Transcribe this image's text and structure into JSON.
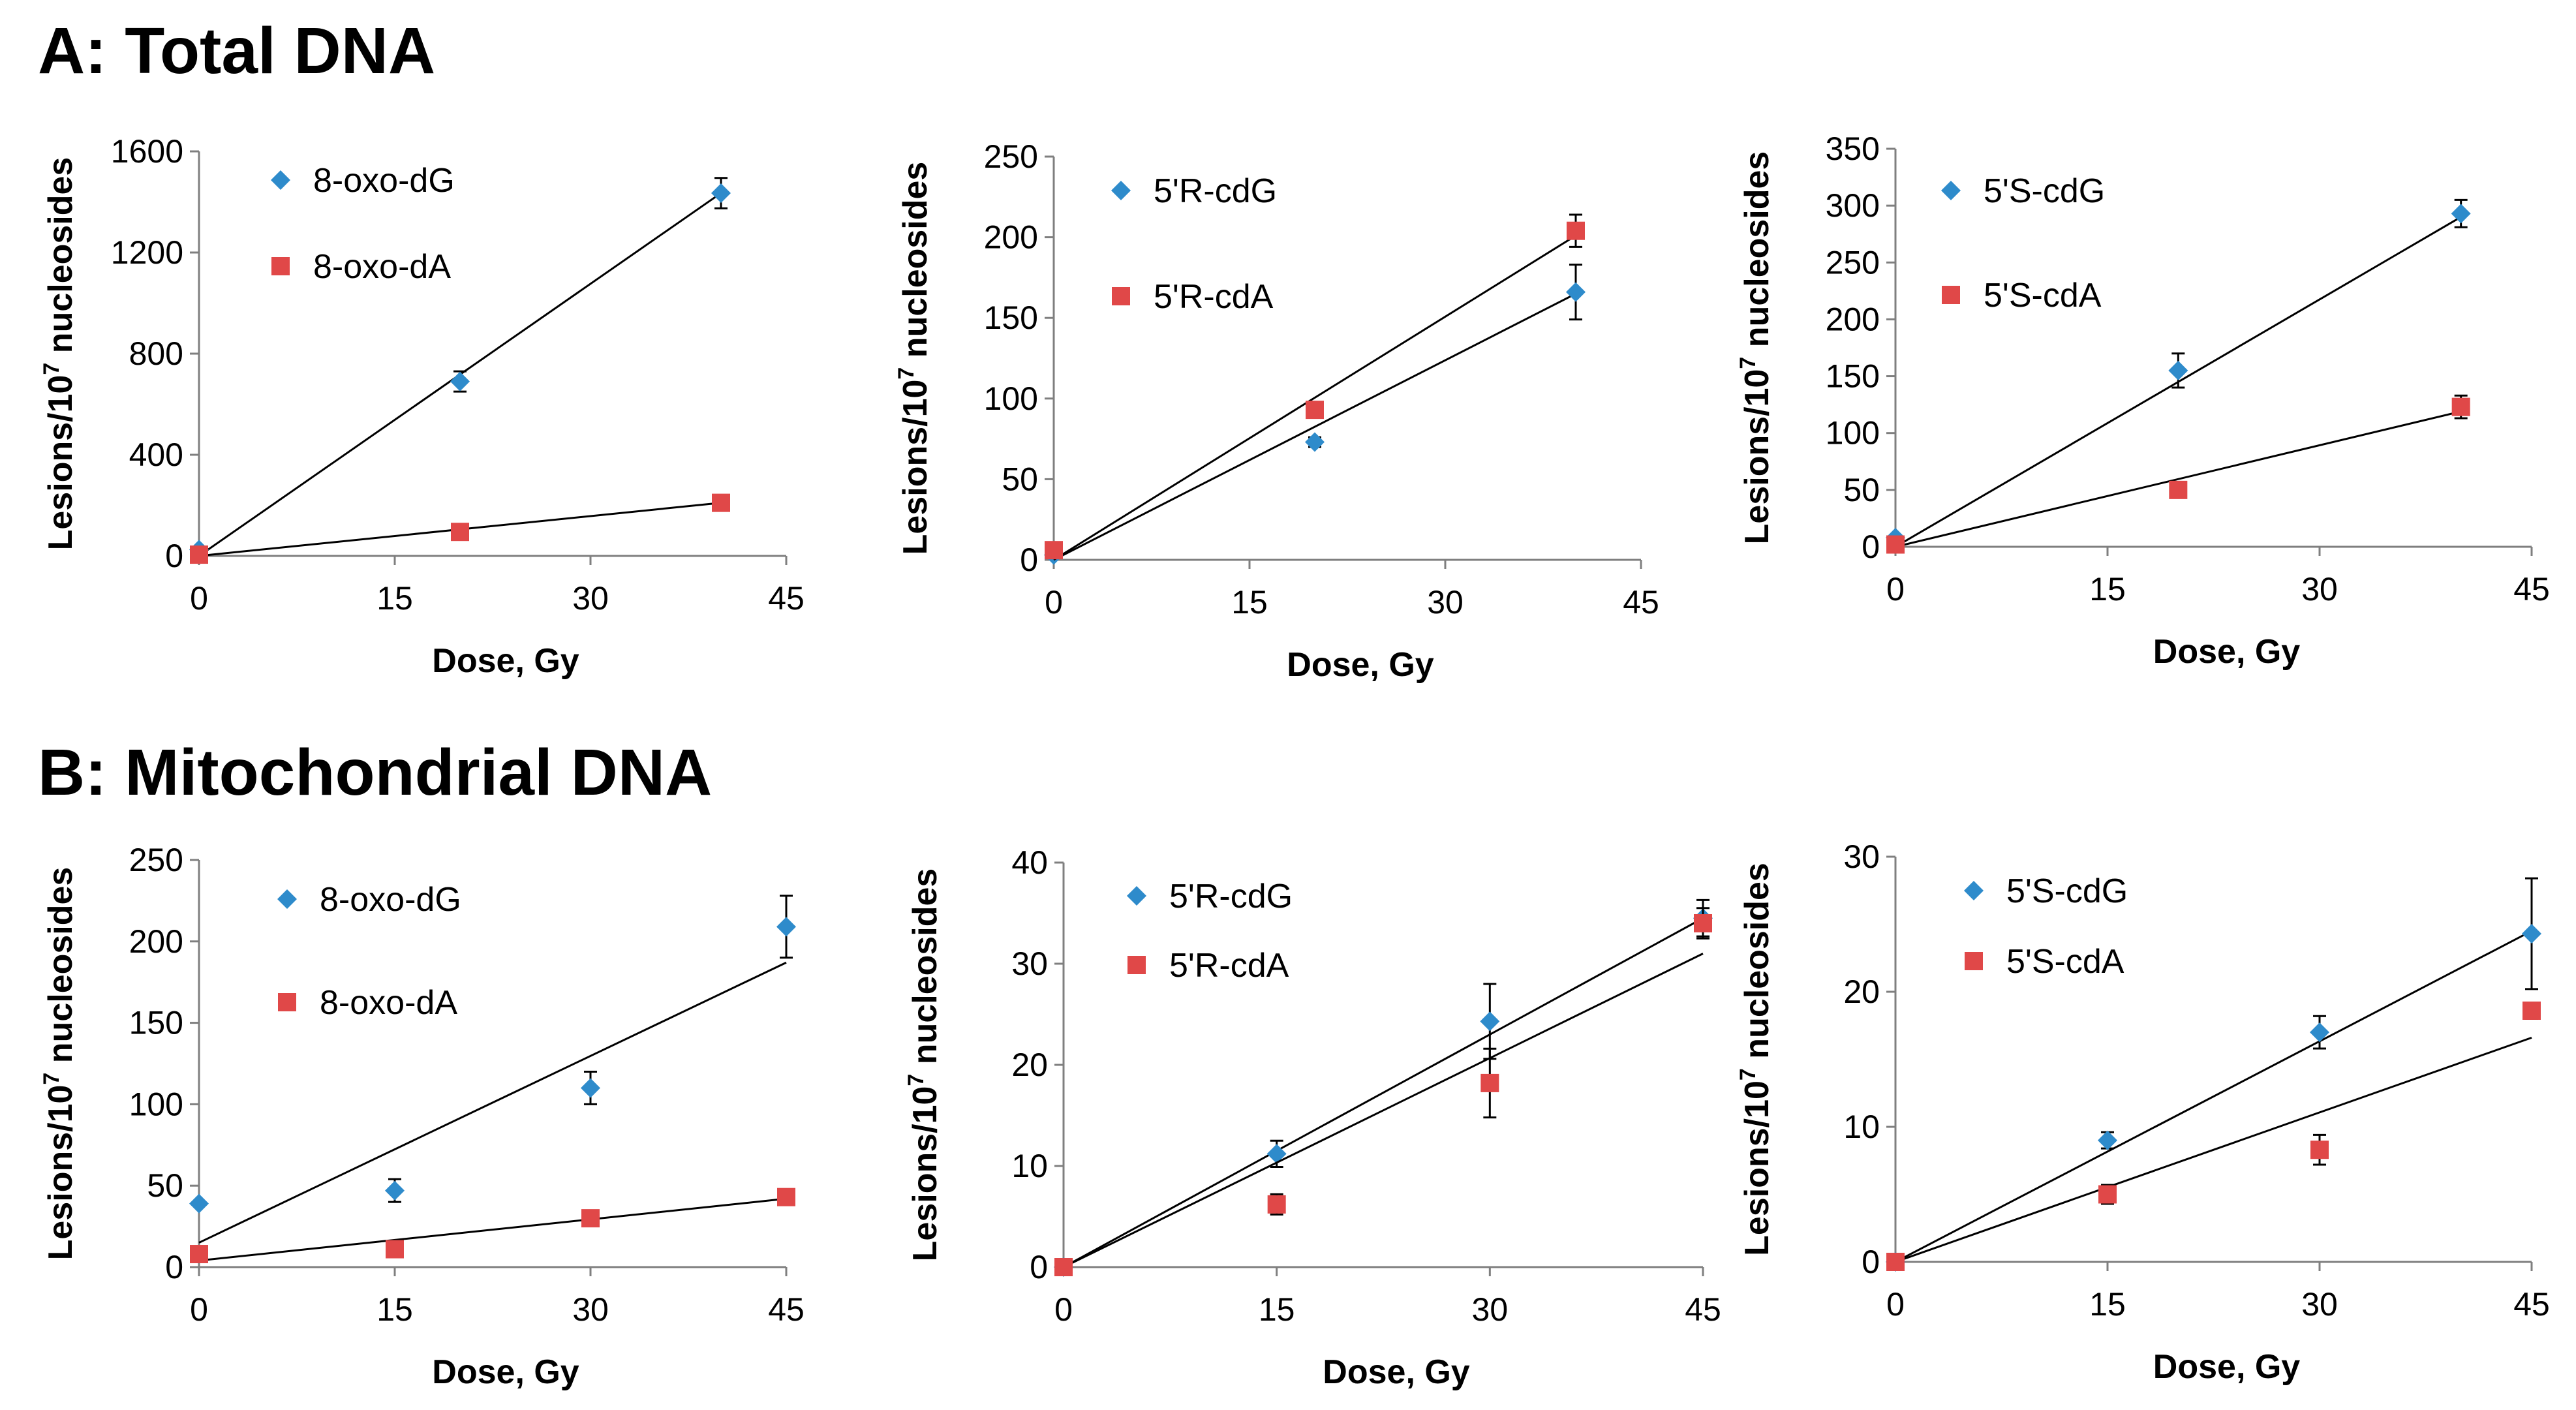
{
  "sections": [
    {
      "title": "A: Total DNA"
    },
    {
      "title": "B: Mitochondrial DNA"
    }
  ],
  "colors": {
    "dG": "#2e8bcb",
    "dA": "#e04848"
  },
  "chart_data": [
    {
      "type": "scatter",
      "section": "A: Total DNA",
      "xlabel": "Dose, Gy",
      "ylabel_prefix": "Lesions/10",
      "ylabel_sup": "7",
      "ylabel_suffix": " nucleosides",
      "xlim": [
        0,
        45
      ],
      "xticks": [
        0,
        15,
        30,
        45
      ],
      "ylim": [
        0,
        1600
      ],
      "yticks": [
        0,
        400,
        800,
        1200,
        1600
      ],
      "series": [
        {
          "name": "8-oxo-dG",
          "marker": "diamond",
          "x": [
            0,
            20,
            40
          ],
          "y": [
            25,
            690,
            1435
          ],
          "err": [
            0,
            40,
            60
          ],
          "fit": [
            [
              0,
              0
            ],
            [
              40,
              1435
            ]
          ]
        },
        {
          "name": "8-oxo-dA",
          "marker": "square",
          "x": [
            0,
            20,
            40
          ],
          "y": [
            5,
            95,
            210
          ],
          "err": [
            0,
            0,
            0
          ],
          "fit": [
            [
              0,
              0
            ],
            [
              40,
              210
            ]
          ]
        }
      ]
    },
    {
      "type": "scatter",
      "section": "A: Total DNA",
      "xlabel": "Dose, Gy",
      "ylabel_prefix": "Lesions/10",
      "ylabel_sup": "7",
      "ylabel_suffix": " nucleosides",
      "xlim": [
        0,
        45
      ],
      "xticks": [
        0,
        15,
        30,
        45
      ],
      "ylim": [
        0,
        250
      ],
      "yticks": [
        0,
        50,
        100,
        150,
        200,
        250
      ],
      "series": [
        {
          "name": "5'R-cdG",
          "marker": "diamond",
          "x": [
            0,
            20,
            40
          ],
          "y": [
            3,
            73,
            166
          ],
          "err": [
            0,
            3,
            17
          ],
          "fit": [
            [
              0,
              0
            ],
            [
              40,
              165
            ]
          ]
        },
        {
          "name": "5'R-cdA",
          "marker": "square",
          "x": [
            0,
            20,
            40
          ],
          "y": [
            6,
            93,
            204
          ],
          "err": [
            0,
            0,
            10
          ],
          "fit": [
            [
              0,
              0
            ],
            [
              40,
              201
            ]
          ]
        }
      ]
    },
    {
      "type": "scatter",
      "section": "A: Total DNA",
      "xlabel": "Dose, Gy",
      "ylabel_prefix": "Lesions/10",
      "ylabel_sup": "7",
      "ylabel_suffix": " nucleosides",
      "xlim": [
        0,
        45
      ],
      "xticks": [
        0,
        15,
        30,
        45
      ],
      "ylim": [
        0,
        350
      ],
      "yticks": [
        0,
        50,
        100,
        150,
        200,
        250,
        300,
        350
      ],
      "series": [
        {
          "name": "5'S-cdG",
          "marker": "diamond",
          "x": [
            0,
            20,
            40
          ],
          "y": [
            8,
            155,
            293
          ],
          "err": [
            0,
            15,
            12
          ],
          "fit": [
            [
              0,
              0
            ],
            [
              40,
              290
            ]
          ]
        },
        {
          "name": "5'S-cdA",
          "marker": "square",
          "x": [
            0,
            20,
            40
          ],
          "y": [
            2,
            50,
            123
          ],
          "err": [
            0,
            0,
            10
          ],
          "fit": [
            [
              0,
              0
            ],
            [
              40,
              119
            ]
          ]
        }
      ]
    },
    {
      "type": "scatter",
      "section": "B: Mitochondrial DNA",
      "xlabel": "Dose, Gy",
      "ylabel_prefix": "Lesions/10",
      "ylabel_sup": "7",
      "ylabel_suffix": " nucleosides",
      "xlim": [
        0,
        45
      ],
      "xticks": [
        0,
        15,
        30,
        45
      ],
      "ylim": [
        0,
        250
      ],
      "yticks": [
        0,
        50,
        100,
        150,
        200,
        250
      ],
      "series": [
        {
          "name": "8-oxo-dG",
          "marker": "diamond",
          "x": [
            0,
            15,
            30,
            45
          ],
          "y": [
            39,
            47,
            110,
            209
          ],
          "err": [
            0,
            7,
            10,
            19
          ],
          "fit": [
            [
              0,
              15
            ],
            [
              45,
              187
            ]
          ]
        },
        {
          "name": "8-oxo-dA",
          "marker": "square",
          "x": [
            0,
            15,
            30,
            45
          ],
          "y": [
            8,
            11,
            30,
            43
          ],
          "err": [
            0,
            0,
            0,
            0
          ],
          "fit": [
            [
              0,
              4
            ],
            [
              45,
              42
            ]
          ]
        }
      ]
    },
    {
      "type": "scatter",
      "section": "B: Mitochondrial DNA",
      "xlabel": "Dose, Gy",
      "ylabel_prefix": "Lesions/10",
      "ylabel_sup": "7",
      "ylabel_suffix": " nucleosides",
      "xlim": [
        0,
        45
      ],
      "xticks": [
        0,
        15,
        30,
        45
      ],
      "ylim": [
        0,
        40
      ],
      "yticks": [
        0,
        10,
        20,
        30,
        40
      ],
      "series": [
        {
          "name": "5'R-cdG",
          "marker": "diamond",
          "x": [
            0,
            15,
            30,
            45
          ],
          "y": [
            0,
            11.2,
            24.3,
            34.5
          ],
          "err": [
            0,
            1.3,
            3.7,
            1.8
          ],
          "fit": [
            [
              0,
              0
            ],
            [
              45,
              34.5
            ]
          ]
        },
        {
          "name": "5'R-cdA",
          "marker": "square",
          "x": [
            0,
            15,
            30,
            45
          ],
          "y": [
            0,
            6.2,
            18.2,
            34
          ],
          "err": [
            0,
            1.0,
            3.4,
            1.5
          ],
          "fit": [
            [
              0,
              0
            ],
            [
              45,
              31
            ]
          ]
        }
      ]
    },
    {
      "type": "scatter",
      "section": "B: Mitochondrial DNA",
      "xlabel": "Dose, Gy",
      "ylabel_prefix": "Lesions/10",
      "ylabel_sup": "7",
      "ylabel_suffix": " nucleosides",
      "xlim": [
        0,
        45
      ],
      "xticks": [
        0,
        15,
        30,
        45
      ],
      "ylim": [
        0,
        30
      ],
      "yticks": [
        0,
        10,
        20,
        30
      ],
      "series": [
        {
          "name": "5'S-cdG",
          "marker": "diamond",
          "x": [
            0,
            15,
            30,
            45
          ],
          "y": [
            0,
            9,
            17,
            24.3
          ],
          "err": [
            0,
            0.6,
            1.2,
            4.1
          ],
          "fit": [
            [
              0,
              0
            ],
            [
              45,
              24.5
            ]
          ]
        },
        {
          "name": "5'S-cdA",
          "marker": "square",
          "x": [
            0,
            15,
            30,
            45
          ],
          "y": [
            0,
            5,
            8.3,
            18.6
          ],
          "err": [
            0,
            0.7,
            1.1,
            0.6
          ],
          "fit": [
            [
              0,
              0
            ],
            [
              45,
              16.6
            ]
          ]
        }
      ]
    }
  ]
}
